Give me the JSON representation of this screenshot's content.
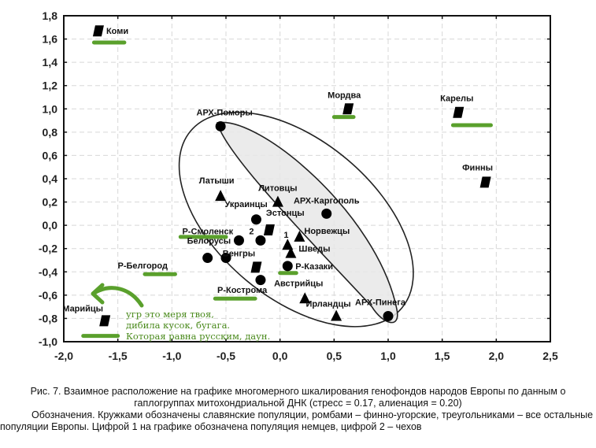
{
  "chart_data": {
    "type": "scatter",
    "title": "",
    "xlabel": "",
    "ylabel": "",
    "xlim": [
      -2.0,
      2.5
    ],
    "ylim": [
      -1.0,
      1.8
    ],
    "grid": true,
    "x_ticks": [
      "-2,0",
      "-1,5",
      "-1,0",
      "-0,5",
      "0,0",
      "0,5",
      "1,0",
      "1,5",
      "2,0",
      "2,5"
    ],
    "y_ticks": [
      "1,8",
      "1,6",
      "1,4",
      "1,2",
      "1,0",
      "0,8",
      "0,6",
      "0,4",
      "0,2",
      "0,0",
      "-0,2",
      "-0,4",
      "-0,6",
      "-0,8",
      "-1,0"
    ],
    "series": [
      {
        "name": "Славянские популяции",
        "marker": "circle",
        "points": [
          {
            "label": "АРХ-Поморы",
            "x": -0.55,
            "y": 0.85
          },
          {
            "label": "Украинцы",
            "x": -0.22,
            "y": 0.05
          },
          {
            "label": "АРХ-Каргополь",
            "x": 0.43,
            "y": 0.1
          },
          {
            "label": "Р-Смоленск",
            "x": -0.38,
            "y": -0.13
          },
          {
            "label": "",
            "x": -0.18,
            "y": -0.13
          },
          {
            "label": "Белорусы",
            "x": -0.67,
            "y": -0.28
          },
          {
            "label": "",
            "x": -0.5,
            "y": -0.28
          },
          {
            "label": "Р-Казаки",
            "x": 0.07,
            "y": -0.35
          },
          {
            "label": "",
            "x": -0.18,
            "y": -0.47
          },
          {
            "label": "АРХ-Пинега",
            "x": 1.0,
            "y": -0.78
          }
        ]
      },
      {
        "name": "Финно-угорские популяции",
        "marker": "rhombus",
        "points": [
          {
            "label": "Коми",
            "x": -1.68,
            "y": 1.67
          },
          {
            "label": "Мордва",
            "x": 0.63,
            "y": 1.0
          },
          {
            "label": "Карелы",
            "x": 1.65,
            "y": 0.97
          },
          {
            "label": "Финны",
            "x": 1.9,
            "y": 0.37
          },
          {
            "label": "Эстонцы",
            "x": -0.1,
            "y": -0.04
          },
          {
            "label": "Венгры",
            "x": -0.22,
            "y": -0.36
          },
          {
            "label": "Марийцы",
            "x": -1.62,
            "y": -0.82
          }
        ]
      },
      {
        "name": "Остальные популяции Европы",
        "marker": "triangle",
        "points": [
          {
            "label": "Латыши",
            "x": -0.55,
            "y": 0.25
          },
          {
            "label": "Литовцы",
            "x": -0.02,
            "y": 0.2
          },
          {
            "label": "Норвежцы",
            "x": 0.18,
            "y": -0.1
          },
          {
            "label": "1",
            "x": 0.07,
            "y": -0.17
          },
          {
            "label": "Шведы",
            "x": 0.1,
            "y": -0.24
          },
          {
            "label": "Австрийцы",
            "x": 0.23,
            "y": -0.63
          },
          {
            "label": "Ирландцы",
            "x": 0.52,
            "y": -0.78
          }
        ]
      }
    ],
    "number_labels": [
      {
        "text": "2",
        "x": -0.22,
        "y": -0.05
      },
      {
        "text": "1",
        "x": 0.1,
        "y": -0.08
      }
    ],
    "annotation_text": [
      "угр это меря твоя,",
      "дибила кусок, бугага.",
      "Которая равна русским, даун."
    ],
    "highlight_color": "#5aa02c"
  },
  "caption": {
    "line1": "Рис. 7. Взаимное расположение на графике многомерного шкалирования генофондов народов Европы по данным о гаплогруппах митохондриальной ДНК (стресс = 0.17, алиенация = 0.20)",
    "line2": "Обозначения. Кружками обозначены славянские популяции, ромбами – финно-угорские, треугольниками – все остальные популяции Европы. Цифрой 1 на графике обозначена популяция немцев, цифрой 2 – чехов"
  }
}
